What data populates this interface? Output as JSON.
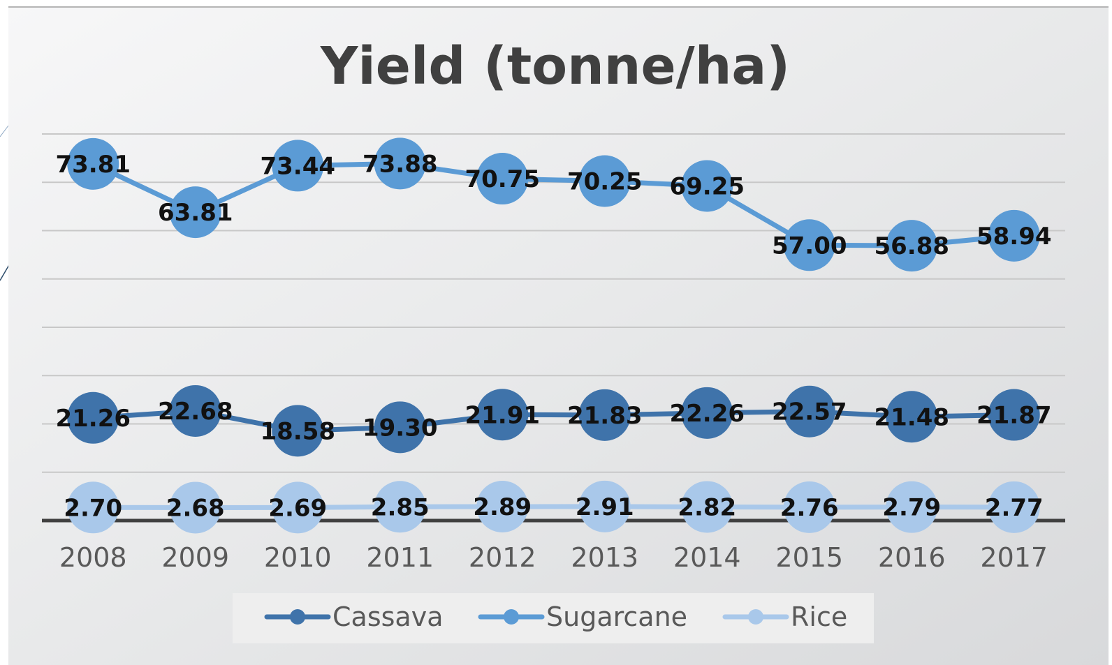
{
  "chart_data": {
    "type": "line",
    "title": "Yield (tonne/ha)",
    "xlabel": "",
    "ylabel": "",
    "categories": [
      "2008",
      "2009",
      "2010",
      "2011",
      "2012",
      "2013",
      "2014",
      "2015",
      "2016",
      "2017"
    ],
    "series": [
      {
        "name": "Cassava",
        "color": "#3F73AA",
        "values": [
          21.26,
          22.68,
          18.58,
          19.3,
          21.91,
          21.83,
          22.26,
          22.57,
          21.48,
          21.87
        ],
        "labels": [
          "21.26",
          "22.68",
          "18.58",
          "19.30",
          "21.91",
          "21.83",
          "22.26",
          "22.57",
          "21.48",
          "21.87"
        ]
      },
      {
        "name": "Sugarcane",
        "color": "#5B9BD5",
        "values": [
          73.81,
          63.81,
          73.44,
          73.88,
          70.75,
          70.25,
          69.25,
          57.0,
          56.88,
          58.94
        ],
        "labels": [
          "73.81",
          "63.81",
          "73.44",
          "73.88",
          "70.75",
          "70.25",
          "69.25",
          "57.00",
          "56.88",
          "58.94"
        ]
      },
      {
        "name": "Rice",
        "color": "#A9C8EA",
        "values": [
          2.7,
          2.68,
          2.69,
          2.85,
          2.89,
          2.91,
          2.82,
          2.76,
          2.79,
          2.77
        ],
        "labels": [
          "2.70",
          "2.68",
          "2.69",
          "2.85",
          "2.89",
          "2.91",
          "2.82",
          "2.76",
          "2.79",
          "2.77"
        ]
      }
    ],
    "ylim": [
      0,
      80
    ],
    "grid": true,
    "legend": "bottom",
    "data_labels": true,
    "colors": {
      "background": "#E6E7E8",
      "gridline": "#C8C8C8",
      "axis": "#404040",
      "title": "#404040",
      "tick": "#595959",
      "legend_box": "#EEEEEE"
    }
  }
}
